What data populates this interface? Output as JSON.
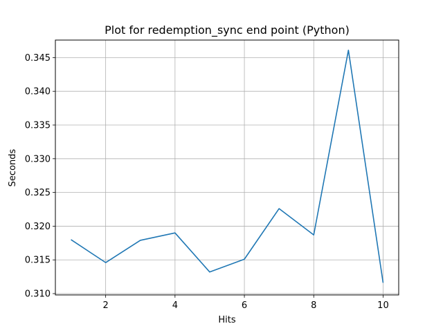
{
  "chart_data": {
    "type": "line",
    "title": "Plot for redemption_sync end point (Python)",
    "xlabel": "Hits",
    "ylabel": "Seconds",
    "xlim": [
      0.55,
      10.45
    ],
    "ylim": [
      0.3098,
      0.3476
    ],
    "xticks": [
      2,
      4,
      6,
      8,
      10
    ],
    "xtick_labels": [
      "2",
      "4",
      "6",
      "8",
      "10"
    ],
    "yticks": [
      0.31,
      0.315,
      0.32,
      0.325,
      0.33,
      0.335,
      0.34,
      0.345
    ],
    "ytick_labels": [
      "0.310",
      "0.315",
      "0.320",
      "0.325",
      "0.330",
      "0.335",
      "0.340",
      "0.345"
    ],
    "grid": true,
    "series": [
      {
        "color": "#1f77b4",
        "x": [
          1,
          2,
          3,
          4,
          5,
          6,
          7,
          8,
          9,
          10
        ],
        "values": [
          0.318,
          0.3146,
          0.3179,
          0.319,
          0.3132,
          0.3151,
          0.3226,
          0.3187,
          0.3461,
          0.3116
        ]
      }
    ]
  }
}
